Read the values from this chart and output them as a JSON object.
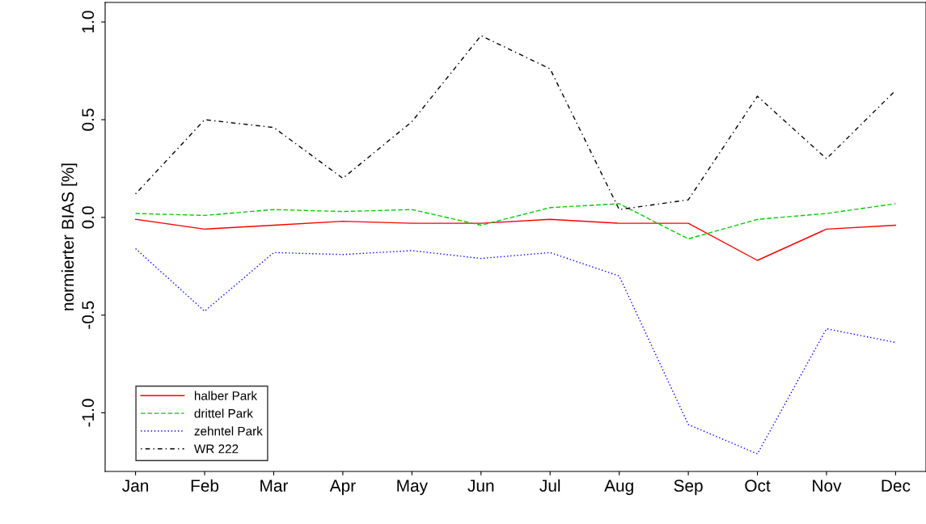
{
  "chart_data": {
    "type": "line",
    "ylabel": "normierter BIAS [%]",
    "categories": [
      "Jan",
      "Feb",
      "Mar",
      "Apr",
      "May",
      "Jun",
      "Jul",
      "Aug",
      "Sep",
      "Oct",
      "Nov",
      "Dec"
    ],
    "series": [
      {
        "name": "halber Park",
        "color": "#ff0000",
        "line_style": "solid",
        "values": [
          -0.01,
          -0.06,
          -0.04,
          -0.02,
          -0.03,
          -0.03,
          -0.01,
          -0.03,
          -0.03,
          -0.22,
          -0.06,
          -0.04
        ]
      },
      {
        "name": "drittel Park",
        "color": "#00cd00",
        "line_style": "dashed",
        "values": [
          0.02,
          0.01,
          0.04,
          0.03,
          0.04,
          -0.04,
          0.05,
          0.07,
          -0.11,
          -0.01,
          0.02,
          0.07
        ]
      },
      {
        "name": "zehntel Park",
        "color": "#0000ff",
        "line_style": "dotted",
        "values": [
          -0.16,
          -0.48,
          -0.18,
          -0.19,
          -0.17,
          -0.21,
          -0.18,
          -0.3,
          -1.06,
          -1.21,
          -0.57,
          -0.64
        ]
      },
      {
        "name": "WR 222",
        "color": "#000000",
        "line_style": "dashdot",
        "values": [
          0.12,
          0.5,
          0.46,
          0.2,
          0.49,
          0.93,
          0.76,
          0.04,
          0.09,
          0.62,
          0.3,
          0.65
        ]
      }
    ],
    "ylim": [
      -1.3,
      1.1
    ],
    "yticks": [
      {
        "value": -1,
        "label": "-1.0"
      },
      -0.5,
      {
        "value": 0,
        "label": "0.0"
      },
      0.5,
      {
        "value": 1,
        "label": "1.0"
      }
    ],
    "grid": false,
    "legend": "bottom left",
    "marker": "none"
  }
}
